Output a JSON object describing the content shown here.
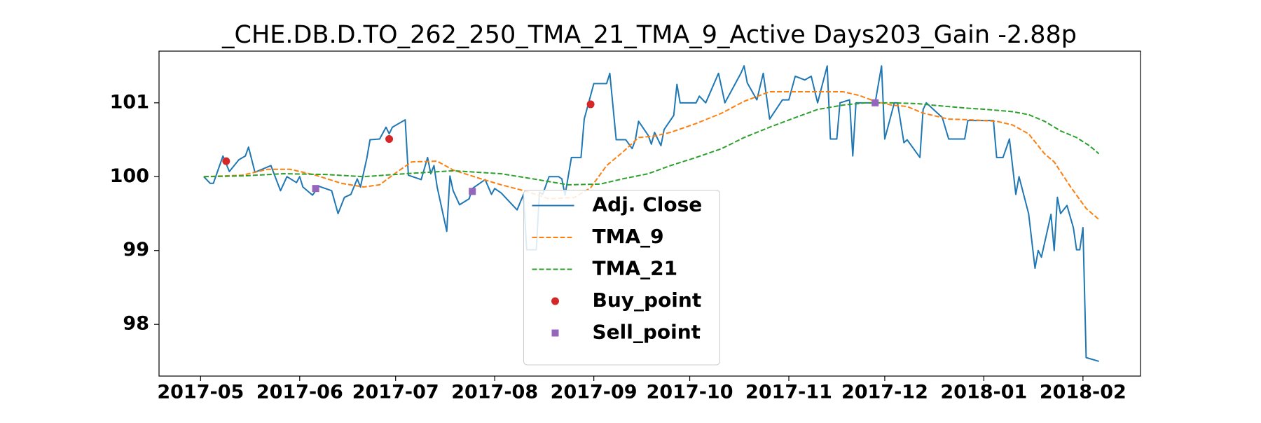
{
  "chart_data": {
    "type": "line",
    "title": "_CHE.DB.D.TO_262_250_TMA_21_TMA_9_Active Days203_Gain  -2.88p",
    "xlim": [
      "2017-04-18",
      "2018-02-19"
    ],
    "xticks": [
      {
        "value": "2017-05-01",
        "label": "2017-05"
      },
      {
        "value": "2017-06-01",
        "label": "2017-06"
      },
      {
        "value": "2017-07-01",
        "label": "2017-07"
      },
      {
        "value": "2017-08-01",
        "label": "2017-08"
      },
      {
        "value": "2017-09-01",
        "label": "2017-09"
      },
      {
        "value": "2017-10-01",
        "label": "2017-10"
      },
      {
        "value": "2017-11-01",
        "label": "2017-11"
      },
      {
        "value": "2017-12-01",
        "label": "2017-12"
      },
      {
        "value": "2018-01-01",
        "label": "2018-01"
      },
      {
        "value": "2018-02-01",
        "label": "2018-02"
      }
    ],
    "ylim": [
      97.3,
      101.7
    ],
    "yticks": [
      98,
      99,
      100,
      101
    ],
    "grid": false,
    "legend": "lower center",
    "series": [
      {
        "name": "Adj. Close",
        "type": "line",
        "style": "solid",
        "color": "#1f77b4",
        "x": [
          "2017-05-02",
          "2017-05-04",
          "2017-05-05",
          "2017-05-08",
          "2017-05-10",
          "2017-05-13",
          "2017-05-15",
          "2017-05-16",
          "2017-05-17",
          "2017-05-18",
          "2017-05-23",
          "2017-05-26",
          "2017-05-28",
          "2017-05-31",
          "2017-06-01",
          "2017-06-02",
          "2017-06-05",
          "2017-06-07",
          "2017-06-11",
          "2017-06-13",
          "2017-06-15",
          "2017-06-17",
          "2017-06-19",
          "2017-06-20",
          "2017-06-22",
          "2017-06-23",
          "2017-06-26",
          "2017-06-28",
          "2017-06-29",
          "2017-06-30",
          "2017-07-04",
          "2017-07-05",
          "2017-07-09",
          "2017-07-11",
          "2017-07-12",
          "2017-07-13",
          "2017-07-14",
          "2017-07-17",
          "2017-07-18",
          "2017-07-19",
          "2017-07-21",
          "2017-07-24",
          "2017-07-25",
          "2017-07-29",
          "2017-07-31",
          "2017-08-01",
          "2017-08-03",
          "2017-08-08",
          "2017-08-10",
          "2017-08-11",
          "2017-08-14",
          "2017-08-15",
          "2017-08-16",
          "2017-08-18",
          "2017-08-21",
          "2017-08-22",
          "2017-08-23",
          "2017-08-25",
          "2017-08-28",
          "2017-08-29",
          "2017-09-01",
          "2017-09-05",
          "2017-09-06",
          "2017-09-08",
          "2017-09-11",
          "2017-09-13",
          "2017-09-14",
          "2017-09-15",
          "2017-09-18",
          "2017-09-19",
          "2017-09-20",
          "2017-09-22",
          "2017-09-23",
          "2017-09-26",
          "2017-09-27",
          "2017-09-28",
          "2017-10-03",
          "2017-10-04",
          "2017-10-06",
          "2017-10-10",
          "2017-10-12",
          "2017-10-17",
          "2017-10-18",
          "2017-10-19",
          "2017-10-22",
          "2017-10-24",
          "2017-10-26",
          "2017-10-30",
          "2017-11-01",
          "2017-11-03",
          "2017-11-06",
          "2017-11-08",
          "2017-11-10",
          "2017-11-13",
          "2017-11-14",
          "2017-11-16",
          "2017-11-17",
          "2017-11-20",
          "2017-11-21",
          "2017-11-22",
          "2017-11-28",
          "2017-11-30",
          "2017-12-01",
          "2017-12-04",
          "2017-12-05",
          "2017-12-07",
          "2017-12-08",
          "2017-12-12",
          "2017-12-13",
          "2017-12-14",
          "2017-12-19",
          "2017-12-21",
          "2017-12-26",
          "2017-12-27",
          "2018-01-04",
          "2018-01-05",
          "2018-01-07",
          "2018-01-09",
          "2018-01-11",
          "2018-01-12",
          "2018-01-15",
          "2018-01-17",
          "2018-01-18",
          "2018-01-19",
          "2018-01-22",
          "2018-01-23",
          "2018-01-24",
          "2018-01-25",
          "2018-01-27",
          "2018-01-29",
          "2018-01-30",
          "2018-01-31",
          "2018-02-01",
          "2018-02-02",
          "2018-02-06"
        ],
        "values": [
          100.0,
          99.91,
          99.91,
          100.28,
          100.07,
          100.23,
          100.28,
          100.4,
          100.23,
          100.06,
          100.15,
          99.81,
          100.0,
          99.92,
          100.0,
          99.86,
          99.75,
          99.87,
          99.81,
          99.5,
          99.72,
          99.76,
          99.97,
          99.86,
          100.25,
          100.5,
          100.51,
          100.67,
          100.58,
          100.67,
          100.77,
          100.02,
          99.96,
          100.26,
          100.04,
          100.15,
          99.86,
          99.26,
          100.01,
          99.81,
          99.62,
          99.7,
          99.84,
          99.96,
          99.76,
          99.84,
          99.78,
          99.55,
          99.76,
          99.01,
          99.01,
          99.79,
          99.76,
          100.0,
          100.0,
          99.97,
          99.75,
          100.26,
          100.26,
          100.78,
          101.26,
          101.26,
          101.4,
          100.5,
          100.5,
          100.38,
          100.5,
          100.75,
          100.56,
          100.44,
          100.6,
          100.42,
          100.64,
          100.83,
          101.25,
          101.0,
          101.0,
          101.09,
          101.0,
          101.4,
          101.0,
          101.4,
          101.5,
          101.27,
          101.04,
          101.4,
          100.78,
          101.04,
          101.04,
          101.36,
          101.31,
          101.36,
          101.0,
          101.5,
          100.51,
          100.51,
          101.0,
          101.04,
          100.28,
          101.0,
          101.0,
          101.5,
          100.51,
          101.0,
          101.0,
          100.46,
          100.5,
          100.26,
          100.91,
          101.0,
          100.8,
          100.51,
          100.51,
          100.76,
          100.76,
          100.26,
          100.26,
          100.51,
          99.76,
          100.0,
          99.5,
          98.76,
          99.0,
          98.91,
          99.49,
          99.0,
          99.72,
          99.5,
          99.61,
          99.31,
          99.01,
          99.01,
          99.31,
          97.55,
          97.5
        ]
      },
      {
        "name": "TMA_9",
        "type": "line",
        "style": "dashed",
        "color": "#ff7f0e",
        "x": [
          "2017-05-02",
          "2017-05-14",
          "2017-05-22",
          "2017-05-29",
          "2017-06-06",
          "2017-06-14",
          "2017-06-21",
          "2017-06-26",
          "2017-07-01",
          "2017-07-06",
          "2017-07-14",
          "2017-07-19",
          "2017-07-27",
          "2017-08-03",
          "2017-08-11",
          "2017-08-18",
          "2017-08-26",
          "2017-08-31",
          "2017-09-05",
          "2017-09-10",
          "2017-09-15",
          "2017-09-20",
          "2017-09-25",
          "2017-10-03",
          "2017-10-11",
          "2017-10-18",
          "2017-10-26",
          "2017-11-03",
          "2017-11-10",
          "2017-11-18",
          "2017-11-23",
          "2017-11-28",
          "2017-12-03",
          "2017-12-08",
          "2017-12-13",
          "2017-12-21",
          "2017-12-28",
          "2018-01-05",
          "2018-01-10",
          "2018-01-15",
          "2018-01-20",
          "2018-01-23",
          "2018-01-28",
          "2018-02-02",
          "2018-02-06"
        ],
        "values": [
          100.0,
          100.02,
          100.1,
          100.1,
          100.02,
          99.91,
          99.86,
          99.89,
          100.05,
          100.2,
          100.21,
          100.09,
          99.98,
          99.89,
          99.8,
          99.7,
          99.72,
          99.85,
          100.15,
          100.33,
          100.53,
          100.55,
          100.6,
          100.72,
          100.86,
          101.02,
          101.15,
          101.15,
          101.15,
          101.15,
          101.1,
          101.02,
          100.97,
          100.95,
          100.86,
          100.78,
          100.77,
          100.75,
          100.7,
          100.58,
          100.31,
          100.2,
          99.87,
          99.57,
          99.42
        ]
      },
      {
        "name": "TMA_21",
        "type": "line",
        "style": "dashed",
        "color": "#2ca02c",
        "x": [
          "2017-05-02",
          "2017-05-14",
          "2017-05-27",
          "2017-06-09",
          "2017-06-21",
          "2017-07-04",
          "2017-07-19",
          "2017-08-03",
          "2017-08-13",
          "2017-08-24",
          "2017-09-03",
          "2017-09-10",
          "2017-09-18",
          "2017-09-25",
          "2017-10-03",
          "2017-10-11",
          "2017-10-18",
          "2017-10-26",
          "2017-11-03",
          "2017-11-10",
          "2017-11-18",
          "2017-11-25",
          "2017-12-03",
          "2017-12-11",
          "2017-12-18",
          "2017-12-26",
          "2018-01-02",
          "2018-01-10",
          "2018-01-15",
          "2018-01-20",
          "2018-01-25",
          "2018-01-30",
          "2018-02-03",
          "2018-02-06"
        ],
        "values": [
          100.0,
          100.01,
          100.04,
          100.03,
          100.0,
          100.04,
          100.08,
          100.04,
          99.97,
          99.89,
          99.9,
          99.97,
          100.04,
          100.15,
          100.26,
          100.38,
          100.53,
          100.67,
          100.8,
          100.91,
          100.97,
          101.0,
          101.0,
          100.99,
          100.96,
          100.93,
          100.91,
          100.88,
          100.84,
          100.75,
          100.62,
          100.53,
          100.42,
          100.31
        ]
      },
      {
        "name": "Buy_point",
        "type": "scatter",
        "marker": "circle",
        "color": "#d62728",
        "x": [
          "2017-05-09",
          "2017-06-29",
          "2017-08-31"
        ],
        "values": [
          100.21,
          100.51,
          100.98
        ]
      },
      {
        "name": "Sell_point",
        "type": "scatter",
        "marker": "square",
        "color": "#9467bd",
        "x": [
          "2017-06-06",
          "2017-07-25",
          "2017-11-28"
        ],
        "values": [
          99.84,
          99.8,
          101.0
        ]
      }
    ]
  }
}
